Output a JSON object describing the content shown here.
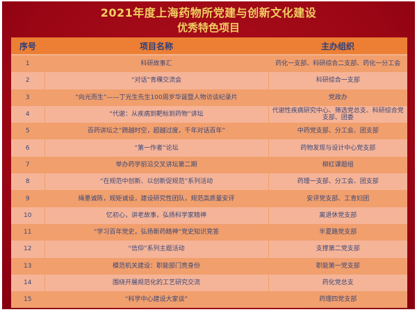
{
  "title": {
    "line1": "2021年度上海药物所党建与创新文化建设",
    "line2": "优秀特色项目"
  },
  "table": {
    "headers": [
      "序号",
      "项目名称",
      "主办组织"
    ],
    "rows": [
      {
        "no": "1",
        "name": "科研故事汇",
        "org": "药化一支部、科研综合二支部、药化一分工会"
      },
      {
        "no": "2",
        "name": "“对话”青稞交流会",
        "org": "科研综合一支部"
      },
      {
        "no": "3",
        "name": "“向光而生”——丁光生先生100周岁华诞暨人物访谈纪录片",
        "org": "党政办"
      },
      {
        "no": "4",
        "name": "“代谢：从疾病到靶标到药物”讲坛",
        "org": "代谢性疾病研究中心、筛选党总支、科研综合党支部、团委"
      },
      {
        "no": "5",
        "name": "百药讲坛之“跨越时空，超越过度，千年对话百年”",
        "org": "中药党支部、分工会、团支部"
      },
      {
        "no": "6",
        "name": "“第一作者”论坛",
        "org": "药物发现与设计中心党支部"
      },
      {
        "no": "7",
        "name": "举办药学前沿交叉讲坛第二期",
        "org": "柳红课题组"
      },
      {
        "no": "8",
        "name": "“在规范中创新、以创新促规范”系列活动",
        "org": "药理一支部、分工会、团支部"
      },
      {
        "no": "9",
        "name": "绳墨诚陈，规矩诚设，建设研究性团队，规范高质量安评",
        "org": "安评党支部、工青妇团"
      },
      {
        "no": "10",
        "name": "忆初心，讲老故事，弘扬科学家精神",
        "org": "离退休党支部"
      },
      {
        "no": "11",
        "name": "“学习百年党史，弘扬新药精神”党史知识竞答",
        "org": "半夏路党支部"
      },
      {
        "no": "12",
        "name": "“信仰”系列主题活动",
        "org": "支撑第二党支部"
      },
      {
        "no": "13",
        "name": "模范机关建设：职能部门亮身份",
        "org": "职能第一党支部"
      },
      {
        "no": "14",
        "name": "围绕开展规范化的工艺研究交流",
        "org": "药化党总支"
      },
      {
        "no": "15",
        "name": "“科学中心建设大家谈”",
        "org": "药理四党支部"
      }
    ]
  }
}
